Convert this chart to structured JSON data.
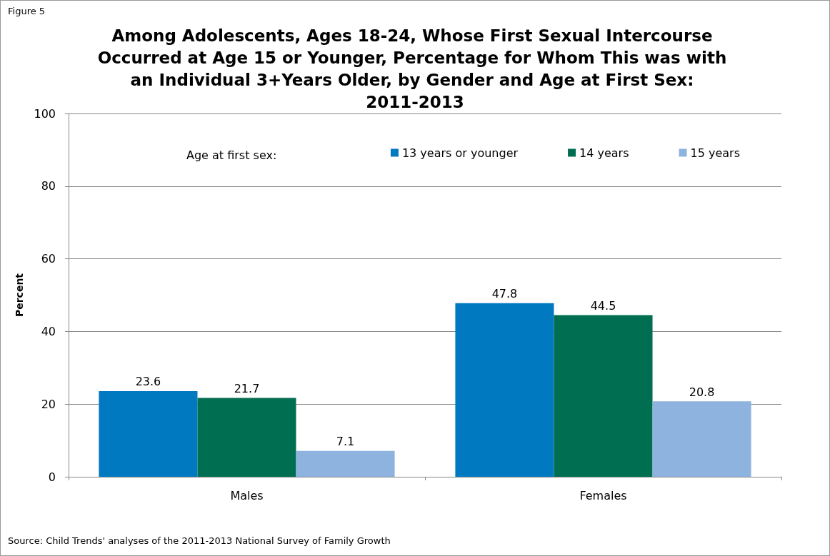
{
  "chart_data": {
    "type": "bar",
    "title": "Among Adolescents, Ages 18-24, Whose First Sexual Intercourse Occurred at Age 15 or Younger, Percentage for Whom This was with an Individual 3+Years Older, by Gender and Age at First Sex: 2011-2013",
    "ylabel": "Percent",
    "legend_title": "Age at first sex:",
    "categories": [
      "Males",
      "Females"
    ],
    "series": [
      {
        "name": "13 years or younger",
        "color": "#0079c1",
        "values": [
          23.6,
          47.8
        ]
      },
      {
        "name": "14 years",
        "color": "#006f51",
        "values": [
          21.7,
          44.5
        ]
      },
      {
        "name": "15 years",
        "color": "#8db3de",
        "values": [
          7.1,
          20.8
        ]
      }
    ],
    "ylim": [
      0,
      100
    ],
    "yticks": [
      0,
      20,
      40,
      60,
      80,
      100
    ],
    "grid": "y",
    "legend": "top right",
    "data_labels": true,
    "annotations": [
      "Figure 5",
      "Source: Child Trends' analyses of the 2011-2013 National Survey of Family Growth"
    ]
  }
}
